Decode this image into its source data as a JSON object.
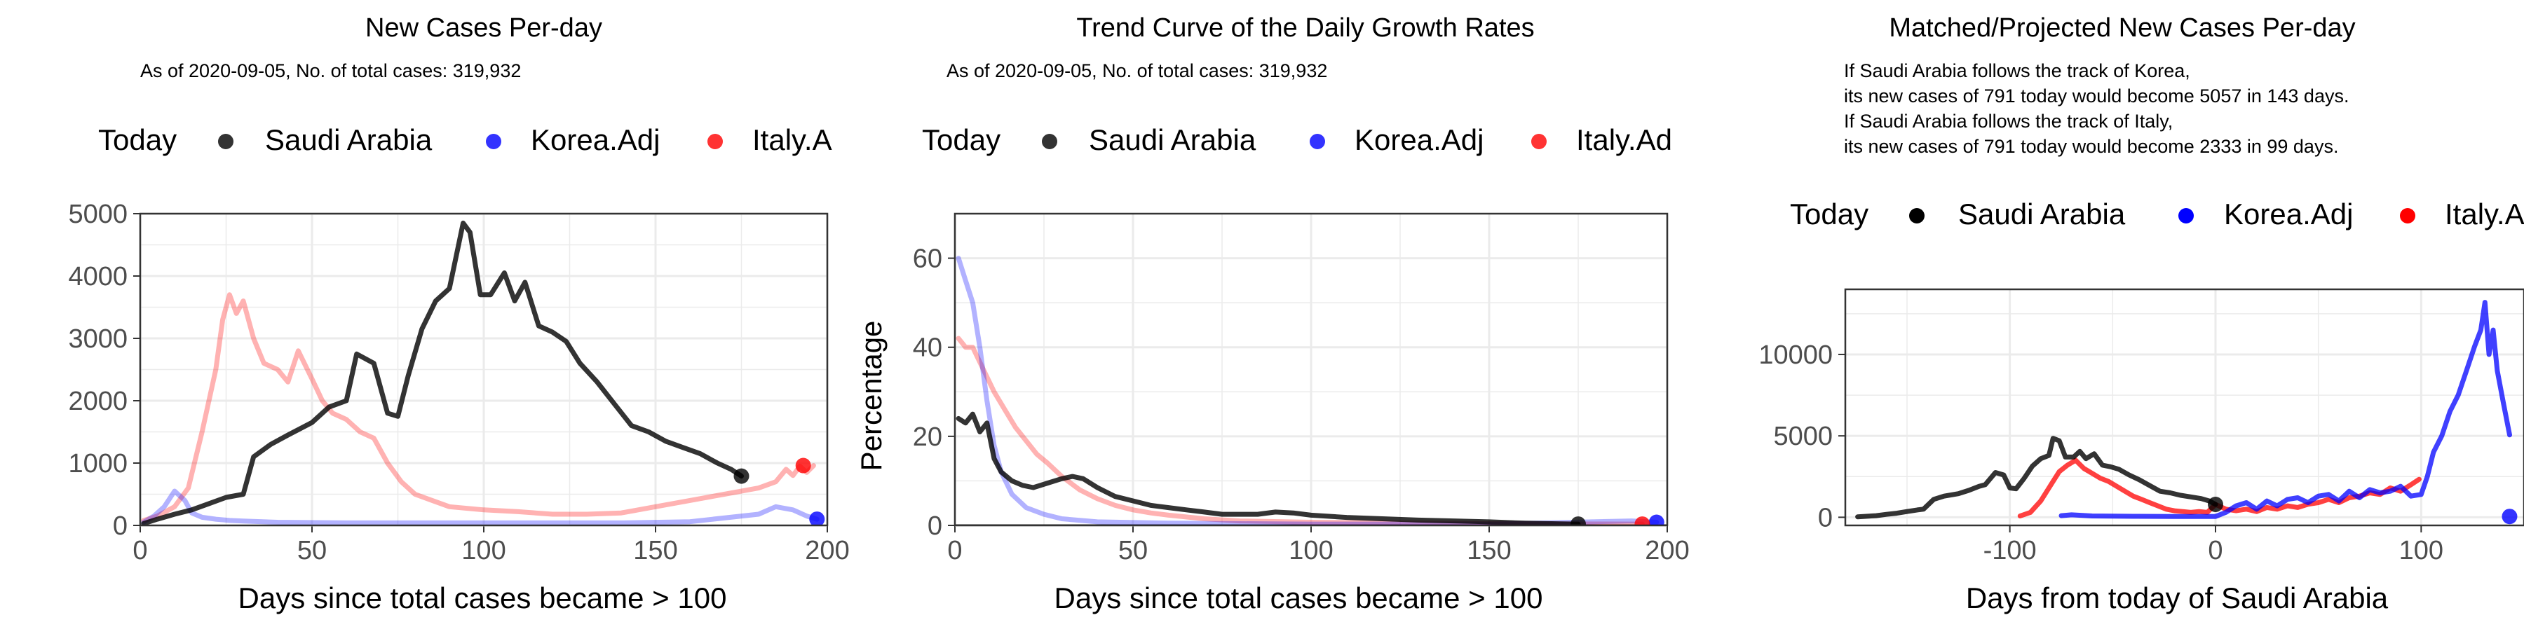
{
  "colors": {
    "today": "#000000",
    "saudi": "#000000",
    "korea": "#0000FF",
    "italy": "#FF0000",
    "grid": "#EBEBEB",
    "panel_border": "#333333"
  },
  "legend": {
    "title": "Today",
    "labels": [
      "Saudi Arabia",
      "Korea.Adj",
      "Italy.A"
    ],
    "labels_panel2": [
      "Saudi Arabia",
      "Korea.Adj",
      "Italy.Ad"
    ]
  },
  "chart_data": [
    {
      "type": "line",
      "title": "New Cases Per-day",
      "subtitle": "As of 2020-09-05, No. of total cases: 319,932",
      "xlabel": "Days since total cases became > 100",
      "ylabel": "",
      "xlim": [
        0,
        200
      ],
      "ylim": [
        0,
        5000
      ],
      "xticks": [
        0,
        50,
        100,
        150,
        200
      ],
      "yticks": [
        0,
        1000,
        2000,
        3000,
        4000,
        5000
      ],
      "xtick_labels": [
        "0",
        "50",
        "100",
        "150",
        "200"
      ],
      "ytick_labels": [
        "0",
        "1000",
        "2000",
        "3000",
        "4000",
        "5000"
      ],
      "grid": true,
      "legend_position": "top",
      "series": [
        {
          "name": "Saudi Arabia",
          "color": "#000000",
          "x": [
            1,
            5,
            10,
            15,
            20,
            25,
            30,
            33,
            38,
            43,
            50,
            55,
            60,
            63,
            68,
            72,
            75,
            78,
            82,
            86,
            90,
            94,
            96,
            99,
            102,
            106,
            109,
            112,
            116,
            120,
            124,
            128,
            133,
            138,
            143,
            148,
            153,
            158,
            163,
            168,
            172,
            175
          ],
          "y": [
            30,
            100,
            180,
            250,
            350,
            450,
            500,
            1100,
            1300,
            1450,
            1650,
            1900,
            2000,
            2750,
            2600,
            1800,
            1750,
            2400,
            3150,
            3600,
            3800,
            4850,
            4700,
            3700,
            3700,
            4050,
            3600,
            3900,
            3200,
            3100,
            2950,
            2600,
            2300,
            1950,
            1600,
            1500,
            1350,
            1250,
            1150,
            1000,
            900,
            791
          ]
        },
        {
          "name": "Korea.Adj",
          "color": "#0000FF",
          "x": [
            1,
            4,
            7,
            10,
            13,
            15,
            18,
            22,
            26,
            30,
            40,
            60,
            80,
            100,
            120,
            140,
            160,
            180,
            185,
            190,
            194,
            197
          ],
          "y": [
            50,
            150,
            300,
            550,
            400,
            200,
            130,
            100,
            80,
            70,
            50,
            40,
            40,
            40,
            40,
            40,
            60,
            180,
            300,
            250,
            150,
            100
          ]
        },
        {
          "name": "Italy.Adj",
          "color": "#FF0000",
          "x": [
            1,
            5,
            10,
            14,
            18,
            22,
            24,
            26,
            28,
            30,
            33,
            36,
            40,
            43,
            46,
            50,
            53,
            56,
            60,
            64,
            68,
            72,
            76,
            80,
            85,
            90,
            100,
            110,
            120,
            130,
            140,
            150,
            160,
            170,
            180,
            185,
            188,
            190,
            192,
            194,
            196
          ],
          "y": [
            80,
            150,
            300,
            600,
            1500,
            2500,
            3300,
            3700,
            3400,
            3600,
            3000,
            2600,
            2500,
            2300,
            2800,
            2350,
            2000,
            1800,
            1700,
            1500,
            1400,
            1000,
            700,
            500,
            400,
            300,
            250,
            220,
            180,
            180,
            200,
            300,
            400,
            500,
            600,
            700,
            900,
            800,
            950,
            850,
            960
          ]
        }
      ],
      "today_points": [
        {
          "name": "Saudi Arabia",
          "x": 175,
          "y": 791,
          "color": "#000000"
        },
        {
          "name": "Korea.Adj",
          "x": 197,
          "y": 100,
          "color": "#0000FF"
        },
        {
          "name": "Italy.Adj",
          "x": 193,
          "y": 960,
          "color": "#FF0000"
        }
      ]
    },
    {
      "type": "line",
      "title": "Trend Curve of the Daily Growth Rates",
      "subtitle": "As of 2020-09-05, No. of total cases: 319,932",
      "xlabel": "Days since total cases became > 100",
      "ylabel": "Percentage",
      "xlim": [
        0,
        200
      ],
      "ylim": [
        0,
        70
      ],
      "xticks": [
        0,
        50,
        100,
        150,
        200
      ],
      "yticks": [
        0,
        20,
        40,
        60
      ],
      "xtick_labels": [
        "0",
        "50",
        "100",
        "150",
        "200"
      ],
      "ytick_labels": [
        "0",
        "20",
        "40",
        "60"
      ],
      "grid": true,
      "legend_position": "top",
      "series": [
        {
          "name": "Saudi Arabia",
          "color": "#000000",
          "x": [
            1,
            3,
            5,
            7,
            9,
            11,
            13,
            16,
            19,
            22,
            26,
            30,
            33,
            36,
            40,
            45,
            50,
            55,
            60,
            65,
            70,
            75,
            80,
            85,
            90,
            95,
            100,
            110,
            120,
            130,
            140,
            150,
            160,
            170,
            175
          ],
          "y": [
            24,
            23,
            25,
            21,
            23,
            15,
            12,
            10,
            9,
            8.5,
            9.5,
            10.5,
            11,
            10.5,
            8.5,
            6.5,
            5.5,
            4.5,
            4,
            3.5,
            3,
            2.5,
            2.5,
            2.5,
            3,
            2.8,
            2.3,
            1.8,
            1.5,
            1.2,
            1,
            0.8,
            0.5,
            0.35,
            0.3
          ]
        },
        {
          "name": "Korea.Adj",
          "color": "#0000FF",
          "x": [
            1,
            3,
            5,
            7,
            9,
            11,
            13,
            16,
            20,
            25,
            30,
            40,
            60,
            80,
            100,
            150,
            190,
            197
          ],
          "y": [
            60,
            55,
            50,
            40,
            28,
            18,
            12,
            7,
            4,
            2.5,
            1.5,
            0.8,
            0.5,
            0.4,
            0.3,
            0.3,
            1,
            0.7
          ]
        },
        {
          "name": "Italy.Adj",
          "color": "#FF0000",
          "x": [
            1,
            3,
            5,
            8,
            11,
            14,
            17,
            20,
            23,
            26,
            30,
            35,
            40,
            45,
            50,
            55,
            60,
            70,
            80,
            100,
            150,
            193
          ],
          "y": [
            42,
            40,
            40,
            35,
            30,
            26,
            22,
            19,
            16,
            14,
            11,
            8,
            6,
            4.5,
            3.5,
            2.8,
            2.3,
            1.5,
            1,
            0.7,
            0.4,
            0.3
          ]
        }
      ],
      "today_points": [
        {
          "name": "Saudi Arabia",
          "x": 175,
          "y": 0.3,
          "color": "#000000"
        },
        {
          "name": "Korea.Adj",
          "x": 197,
          "y": 0.7,
          "color": "#0000FF"
        },
        {
          "name": "Italy.Adj",
          "x": 193,
          "y": 0.3,
          "color": "#FF0000"
        }
      ]
    },
    {
      "type": "line",
      "title": "Matched/Projected New Cases Per-day",
      "subtitle_lines": [
        "If Saudi Arabia follows the track of Korea,",
        "its new cases of 791 today would become 5057 in 143 days.",
        "If Saudi Arabia follows the track of Italy,",
        "its new cases of 791 today would become 2333 in 99 days."
      ],
      "xlabel": "Days from today of Saudi Arabia",
      "ylabel": "",
      "xlim": [
        -180,
        150
      ],
      "ylim": [
        -500,
        14000
      ],
      "xticks": [
        -100,
        0,
        100
      ],
      "yticks": [
        0,
        5000,
        10000
      ],
      "xtick_labels": [
        "-100",
        "0",
        "100"
      ],
      "ytick_labels": [
        "0",
        "5000",
        "10000"
      ],
      "grid": true,
      "legend_position": "top",
      "series": [
        {
          "name": "Saudi Arabia",
          "color": "#000000",
          "x": [
            -174,
            -165,
            -160,
            -155,
            -150,
            -145,
            -142,
            -137,
            -132,
            -125,
            -120,
            -115,
            -112,
            -107,
            -103,
            -100,
            -97,
            -93,
            -89,
            -85,
            -81,
            -79,
            -76,
            -73,
            -69,
            -66,
            -63,
            -59,
            -55,
            -51,
            -47,
            -42,
            -37,
            -32,
            -27,
            -22,
            -17,
            -12,
            -7,
            -3,
            0
          ],
          "y": [
            30,
            100,
            180,
            250,
            350,
            450,
            500,
            1100,
            1300,
            1450,
            1650,
            1900,
            2000,
            2750,
            2600,
            1800,
            1750,
            2400,
            3150,
            3600,
            3800,
            4850,
            4700,
            3700,
            3700,
            4050,
            3600,
            3900,
            3200,
            3100,
            2950,
            2600,
            2300,
            1950,
            1600,
            1500,
            1350,
            1250,
            1150,
            1000,
            791
          ]
        },
        {
          "name": "Korea.Adj",
          "color": "#0000FF",
          "x": [
            -75,
            -70,
            -60,
            -40,
            -20,
            0,
            5,
            10,
            15,
            20,
            25,
            30,
            35,
            40,
            45,
            50,
            55,
            60,
            65,
            70,
            75,
            80,
            85,
            90,
            95,
            100,
            103,
            106,
            110,
            114,
            118,
            122,
            126,
            129,
            131,
            133,
            135,
            137,
            140,
            143
          ],
          "y": [
            100,
            150,
            80,
            60,
            50,
            50,
            300,
            700,
            900,
            500,
            1000,
            700,
            1100,
            1200,
            900,
            1300,
            1400,
            1000,
            1600,
            1200,
            1700,
            1500,
            1600,
            1900,
            1300,
            1400,
            2500,
            4000,
            5000,
            6500,
            7500,
            9000,
            10500,
            11500,
            13200,
            10000,
            11500,
            9000,
            7000,
            5057
          ]
        },
        {
          "name": "Italy.Adj",
          "color": "#FF0000",
          "x": [
            -95,
            -90,
            -85,
            -80,
            -76,
            -72,
            -68,
            -64,
            -60,
            -56,
            -52,
            -48,
            -44,
            -40,
            -36,
            -32,
            -28,
            -24,
            -20,
            -16,
            -12,
            -8,
            -4,
            0,
            5,
            10,
            15,
            20,
            25,
            30,
            35,
            40,
            45,
            50,
            55,
            60,
            65,
            70,
            75,
            80,
            85,
            90,
            95,
            99
          ],
          "y": [
            80,
            300,
            1000,
            2000,
            2800,
            3200,
            3500,
            3000,
            2700,
            2400,
            2200,
            1900,
            1600,
            1300,
            1100,
            900,
            700,
            500,
            400,
            350,
            300,
            350,
            300,
            791,
            500,
            400,
            500,
            350,
            600,
            500,
            700,
            600,
            800,
            900,
            1100,
            900,
            1200,
            1300,
            1500,
            1400,
            1800,
            1600,
            2000,
            2333
          ]
        }
      ],
      "today_points": [
        {
          "name": "Saudi Arabia",
          "x": 0,
          "y": 791,
          "color": "#000000"
        },
        {
          "name": "Korea.Adj",
          "x": 143,
          "y": 50,
          "color": "#0000FF"
        }
      ]
    }
  ]
}
